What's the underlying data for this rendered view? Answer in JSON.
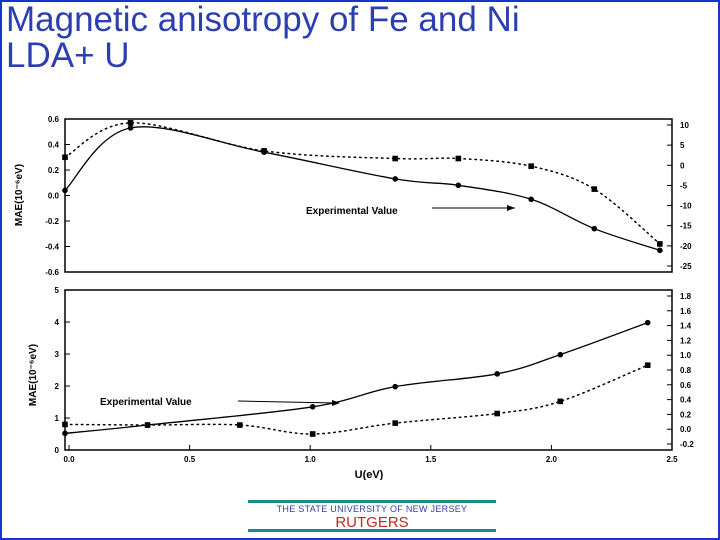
{
  "slide": {
    "title_line1": "Magnetic anisotropy of Fe and Ni",
    "title_line2": "LDA+ U",
    "footer_university": "THE STATE UNIVERSITY OF NEW JERSEY",
    "footer_name": "RUTGERS",
    "colors": {
      "title": "#2b3fb0",
      "border": "#1a33cc",
      "footer_bar": "#1a8a8a",
      "rutgers": "#c2282a"
    }
  },
  "chart_data": [
    {
      "type": "line",
      "panel": "top",
      "ylabel": "MAE(10⁻⁶eV)",
      "ylim": [
        -0.6,
        0.6
      ],
      "yticks": [
        "0.6",
        "0.4",
        "0.2",
        "0.0",
        "-0.2",
        "-0.4",
        "-0.6"
      ],
      "ylim_right": [
        -25,
        10
      ],
      "yticks_right": [
        "10",
        "5",
        "0",
        "-5",
        "-10",
        "-15",
        "-20",
        "-25"
      ],
      "xlim": [
        0,
        2.5
      ],
      "annotation": "Experimental Value",
      "series": [
        {
          "style": "solid",
          "marker": "circle",
          "x": [
            0.0,
            0.27,
            0.82,
            1.36,
            1.62,
            1.92,
            2.18,
            2.45
          ],
          "y": [
            0.04,
            0.53,
            0.34,
            0.13,
            0.08,
            -0.03,
            -0.26,
            -0.43
          ]
        },
        {
          "style": "dotted",
          "marker": "square",
          "x": [
            0.0,
            0.27,
            0.82,
            1.36,
            1.62,
            1.92,
            2.18,
            2.45
          ],
          "y": [
            0.3,
            0.57,
            0.35,
            0.29,
            0.29,
            0.23,
            0.05,
            -0.38
          ]
        }
      ]
    },
    {
      "type": "line",
      "panel": "bottom",
      "ylabel": "MAE(10⁻⁶eV)",
      "xlabel": "U(eV)",
      "xticks": [
        "0.0",
        "0.5",
        "1.0",
        "1.5",
        "2.0",
        "2.5"
      ],
      "xlim": [
        0,
        2.5
      ],
      "ylim": [
        0,
        5
      ],
      "yticks": [
        "5",
        "4",
        "3",
        "2",
        "1",
        "0"
      ],
      "ylim_right": [
        -0.2,
        1.8
      ],
      "yticks_right": [
        "1.8",
        "1.6",
        "1.4",
        "1.2",
        "1.0",
        "0.8",
        "0.6",
        "0.4",
        "0.2",
        "0.0",
        "-0.2"
      ],
      "annotation": "Experimental Value",
      "series": [
        {
          "style": "solid",
          "marker": "circle",
          "x": [
            0.0,
            0.34,
            1.02,
            1.36,
            1.78,
            2.04,
            2.4
          ],
          "y": [
            0.52,
            0.78,
            1.35,
            1.98,
            2.38,
            2.98,
            3.98
          ]
        },
        {
          "style": "dotted",
          "marker": "square",
          "x": [
            0.0,
            0.34,
            0.72,
            1.02,
            1.36,
            1.78,
            2.04,
            2.4
          ],
          "y": [
            0.8,
            0.78,
            0.78,
            0.5,
            0.84,
            1.14,
            1.52,
            2.65
          ]
        }
      ]
    }
  ]
}
